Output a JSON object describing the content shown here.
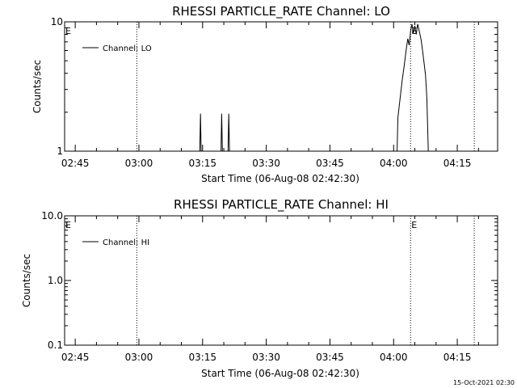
{
  "timestamp": "15-Oct-2021 02:30",
  "chart_data": [
    {
      "type": "line",
      "title": "RHESSI PARTICLE_RATE Channel: LO",
      "xlabel": "Start Time (06-Aug-08 02:42:30)",
      "ylabel": "Counts/sec",
      "y_scale": "log",
      "ylim": [
        1,
        10
      ],
      "y_ticks": [
        "1",
        "10"
      ],
      "x_ticks": [
        "02:45",
        "03:00",
        "03:15",
        "03:30",
        "03:45",
        "04:00",
        "04:15"
      ],
      "x_unit": "HH:MM",
      "xlim": [
        "02:42:30",
        "04:24:30"
      ],
      "dotted_lines": [
        "02:59:30",
        "04:04:00",
        "04:19:00"
      ],
      "markers": [
        {
          "label": "E",
          "x": "02:42:30"
        },
        {
          "label": "E",
          "x": "04:04:00"
        }
      ],
      "legend": {
        "label": "Channel: LO",
        "position": "top-left"
      },
      "series": [
        {
          "name": "Channel: LO",
          "points": [
            [
              "03:14:20",
              1
            ],
            [
              "03:14:30",
              1.95
            ],
            [
              "03:14:40",
              1
            ],
            [
              "03:19:20",
              1
            ],
            [
              "03:19:30",
              1.95
            ],
            [
              "03:19:40",
              1
            ],
            [
              "03:21:00",
              1
            ],
            [
              "03:21:10",
              1.95
            ],
            [
              "03:21:20",
              1
            ],
            [
              "04:00:50",
              1
            ],
            [
              "04:01:00",
              1.8
            ],
            [
              "04:01:30",
              2.5
            ],
            [
              "04:02:00",
              3.5
            ],
            [
              "04:02:30",
              4.6
            ],
            [
              "04:03:00",
              6.2
            ],
            [
              "04:03:20",
              7.4
            ],
            [
              "04:03:40",
              6.6
            ],
            [
              "04:04:00",
              8.5
            ],
            [
              "04:04:20",
              9.6
            ],
            [
              "04:04:40",
              8.2
            ],
            [
              "04:05:00",
              9.3
            ],
            [
              "04:05:20",
              8.0
            ],
            [
              "04:05:40",
              9.6
            ],
            [
              "04:06:00",
              8.6
            ],
            [
              "04:06:30",
              7.2
            ],
            [
              "04:07:00",
              5.4
            ],
            [
              "04:07:30",
              3.9
            ],
            [
              "04:07:50",
              2.6
            ],
            [
              "04:08:00",
              1.6
            ],
            [
              "04:08:10",
              1
            ]
          ]
        }
      ]
    },
    {
      "type": "line",
      "title": "RHESSI PARTICLE_RATE Channel: HI",
      "xlabel": "Start Time (06-Aug-08 02:42:30)",
      "ylabel": "Counts/sec",
      "y_scale": "log",
      "ylim": [
        0.1,
        10
      ],
      "y_ticks": [
        "0.1",
        "1.0",
        "10.0"
      ],
      "x_ticks": [
        "02:45",
        "03:00",
        "03:15",
        "03:30",
        "03:45",
        "04:00",
        "04:15"
      ],
      "x_unit": "HH:MM",
      "xlim": [
        "02:42:30",
        "04:24:30"
      ],
      "dotted_lines": [
        "02:59:30",
        "04:04:00",
        "04:19:00"
      ],
      "markers": [
        {
          "label": "E",
          "x": "02:42:30"
        },
        {
          "label": "E",
          "x": "04:04:00"
        }
      ],
      "legend": {
        "label": "Channel: HI",
        "position": "top-left"
      },
      "series": [
        {
          "name": "Channel: HI",
          "points": []
        }
      ]
    }
  ]
}
